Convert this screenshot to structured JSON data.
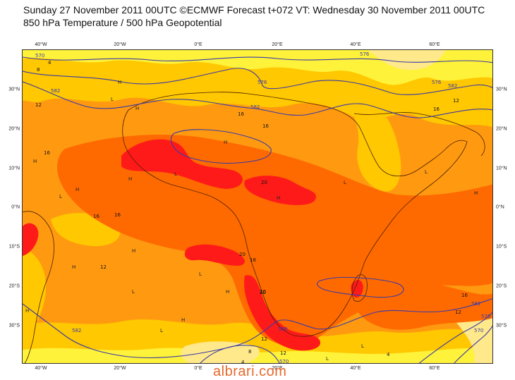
{
  "header": {
    "line1": "Sunday 27 November 2011 00UTC ©ECMWF Forecast t+072 VT: Wednesday 30 November 2011 00UTC",
    "line2": "850 hPa Temperature / 500 hPa Geopotential"
  },
  "longitude_labels": [
    "40°W",
    "20°W",
    "0°E",
    "20°E",
    "40°E",
    "60°E"
  ],
  "latitude_labels": [
    "30°N",
    "20°N",
    "10°N",
    "0°N",
    "10°S",
    "20°S",
    "30°S"
  ],
  "contour_labels": {
    "temperature": [
      "16",
      "16",
      "16",
      "16",
      "20",
      "20",
      "20",
      "16",
      "12",
      "12",
      "12",
      "8",
      "12",
      "4",
      "16",
      "20",
      "12",
      "16",
      "4",
      "4",
      "8",
      "12",
      "16"
    ],
    "geopotential": [
      "570",
      "576",
      "582",
      "582",
      "576",
      "582",
      "576",
      "570",
      "582",
      "588",
      "582",
      "576",
      "570"
    ]
  },
  "pressure_markers": [
    "H",
    "H",
    "L",
    "H",
    "L",
    "H",
    "H",
    "L",
    "H",
    "H",
    "L",
    "H",
    "L",
    "H",
    "H",
    "L",
    "H",
    "L",
    "H",
    "L",
    "H",
    "L",
    "H",
    "L"
  ],
  "watermark": "albrari.com",
  "colors": {
    "cold": "#ffe98a",
    "cool": "#fff23a",
    "warm": "#ffc800",
    "hot": "#ff9a10",
    "hotter": "#ff6a00",
    "hottest": "#ff1a1a",
    "contour": "#3a3aa8",
    "coast": "#4a2000"
  }
}
